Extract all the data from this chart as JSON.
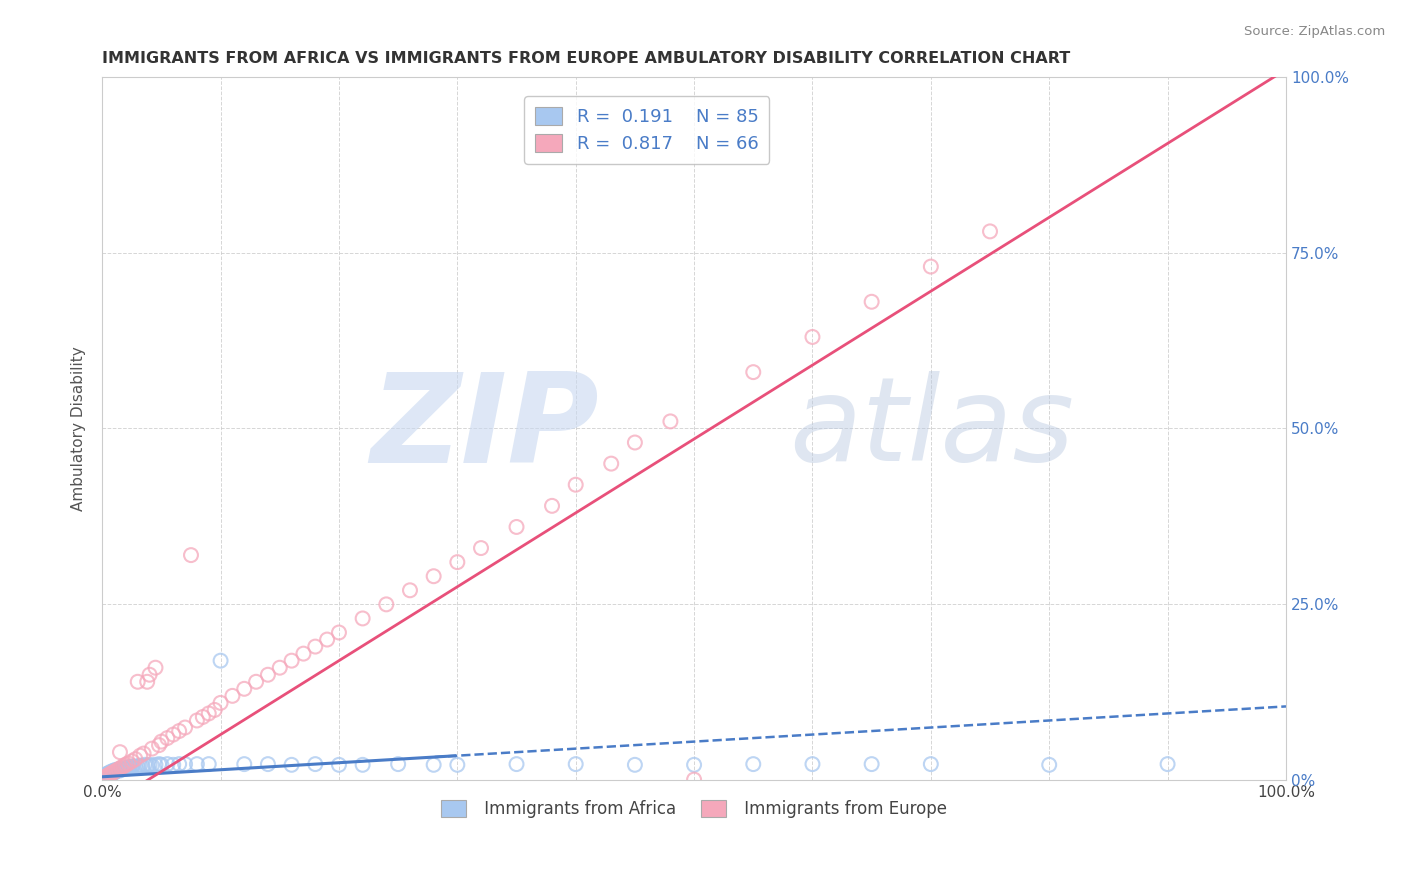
{
  "title": "IMMIGRANTS FROM AFRICA VS IMMIGRANTS FROM EUROPE AMBULATORY DISABILITY CORRELATION CHART",
  "source": "Source: ZipAtlas.com",
  "ylabel": "Ambulatory Disability",
  "xlim": [
    0,
    1.0
  ],
  "ylim": [
    0,
    1.0
  ],
  "series": [
    {
      "name": "Immigrants from Africa",
      "R": 0.191,
      "N": 85,
      "color_scatter": "#A8C8F0",
      "color_line": "#4A7CC7",
      "line_style": "--",
      "slope": 0.1,
      "intercept": 0.005
    },
    {
      "name": "Immigrants from Europe",
      "R": 0.817,
      "N": 66,
      "color_scatter": "#F5A8BB",
      "color_line": "#E8507A",
      "line_style": "-",
      "slope": 1.05,
      "intercept": -0.04
    }
  ],
  "africa_x": [
    0.001,
    0.001,
    0.002,
    0.002,
    0.002,
    0.003,
    0.003,
    0.003,
    0.004,
    0.004,
    0.004,
    0.005,
    0.005,
    0.005,
    0.006,
    0.006,
    0.007,
    0.007,
    0.007,
    0.008,
    0.008,
    0.009,
    0.009,
    0.01,
    0.01,
    0.011,
    0.012,
    0.012,
    0.013,
    0.014,
    0.015,
    0.015,
    0.016,
    0.017,
    0.018,
    0.019,
    0.02,
    0.021,
    0.022,
    0.023,
    0.024,
    0.025,
    0.026,
    0.028,
    0.03,
    0.032,
    0.034,
    0.036,
    0.038,
    0.04,
    0.042,
    0.045,
    0.048,
    0.05,
    0.055,
    0.06,
    0.065,
    0.07,
    0.08,
    0.09,
    0.1,
    0.12,
    0.14,
    0.16,
    0.18,
    0.2,
    0.22,
    0.25,
    0.28,
    0.3,
    0.35,
    0.4,
    0.45,
    0.5,
    0.55,
    0.6,
    0.65,
    0.7,
    0.8,
    0.9,
    0.001,
    0.002,
    0.003,
    0.004,
    0.005
  ],
  "africa_y": [
    0.002,
    0.004,
    0.003,
    0.005,
    0.006,
    0.004,
    0.006,
    0.008,
    0.005,
    0.007,
    0.009,
    0.006,
    0.008,
    0.01,
    0.007,
    0.009,
    0.008,
    0.01,
    0.012,
    0.009,
    0.011,
    0.01,
    0.013,
    0.011,
    0.014,
    0.012,
    0.013,
    0.015,
    0.014,
    0.015,
    0.014,
    0.016,
    0.015,
    0.016,
    0.017,
    0.016,
    0.017,
    0.018,
    0.017,
    0.019,
    0.018,
    0.019,
    0.02,
    0.019,
    0.02,
    0.021,
    0.02,
    0.022,
    0.021,
    0.022,
    0.021,
    0.022,
    0.023,
    0.022,
    0.023,
    0.022,
    0.023,
    0.023,
    0.023,
    0.023,
    0.17,
    0.023,
    0.023,
    0.022,
    0.023,
    0.022,
    0.022,
    0.023,
    0.022,
    0.022,
    0.023,
    0.023,
    0.022,
    0.022,
    0.023,
    0.023,
    0.023,
    0.023,
    0.022,
    0.023,
    0.001,
    0.002,
    0.001,
    0.002,
    0.002
  ],
  "europe_x": [
    0.001,
    0.002,
    0.003,
    0.004,
    0.005,
    0.006,
    0.007,
    0.008,
    0.009,
    0.01,
    0.012,
    0.014,
    0.015,
    0.016,
    0.018,
    0.02,
    0.022,
    0.025,
    0.028,
    0.03,
    0.032,
    0.035,
    0.038,
    0.04,
    0.042,
    0.045,
    0.048,
    0.05,
    0.055,
    0.06,
    0.065,
    0.07,
    0.075,
    0.08,
    0.085,
    0.09,
    0.095,
    0.1,
    0.11,
    0.12,
    0.13,
    0.14,
    0.15,
    0.16,
    0.17,
    0.18,
    0.19,
    0.2,
    0.22,
    0.24,
    0.26,
    0.28,
    0.3,
    0.32,
    0.35,
    0.38,
    0.4,
    0.43,
    0.45,
    0.48,
    0.5,
    0.55,
    0.6,
    0.65,
    0.7,
    0.75
  ],
  "europe_y": [
    0.002,
    0.004,
    0.005,
    0.006,
    0.007,
    0.008,
    0.009,
    0.01,
    0.011,
    0.012,
    0.014,
    0.016,
    0.04,
    0.018,
    0.02,
    0.022,
    0.024,
    0.027,
    0.03,
    0.14,
    0.035,
    0.038,
    0.14,
    0.15,
    0.045,
    0.16,
    0.05,
    0.055,
    0.06,
    0.065,
    0.07,
    0.075,
    0.32,
    0.085,
    0.09,
    0.095,
    0.1,
    0.11,
    0.12,
    0.13,
    0.14,
    0.15,
    0.16,
    0.17,
    0.18,
    0.19,
    0.2,
    0.21,
    0.23,
    0.25,
    0.27,
    0.29,
    0.31,
    0.33,
    0.36,
    0.39,
    0.42,
    0.45,
    0.48,
    0.51,
    0.001,
    0.58,
    0.63,
    0.68,
    0.73,
    0.78
  ],
  "background_color": "#FFFFFF",
  "grid_color": "#CCCCCC",
  "title_color": "#333333"
}
